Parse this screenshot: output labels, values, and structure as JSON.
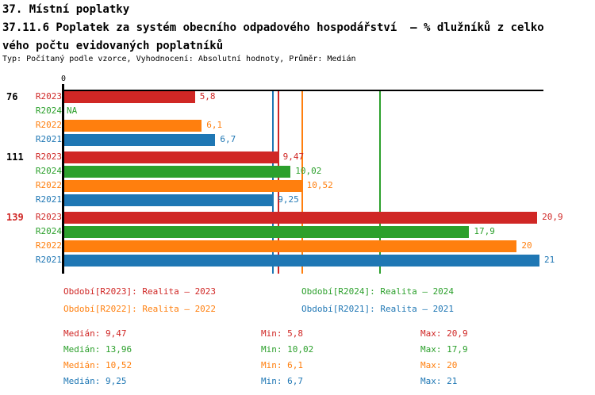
{
  "header": {
    "title": "37. Místní poplatky",
    "subtitle_line1": "37.11.6 Poplatek za systém obecního odpadového hospodářství  – % dlužníků z celko",
    "subtitle_line2": "vého počtu evidovaných poplatníků",
    "meta": "Typ: Počítaný podle vzorce, Vyhodnocení: Absolutní hodnoty, Průměr: Medián"
  },
  "colors": {
    "R2023": "#d02725",
    "R2024": "#2ca02c",
    "R2022": "#ff7f0e",
    "R2021": "#1f77b4",
    "axis": "#000000",
    "highlight_group_label": "#d02725"
  },
  "chart_data": {
    "type": "bar",
    "orientation": "horizontal",
    "title": "37.11.6 Poplatek za systém obecního odpadového hospodářství – % dlužníků z celkového počtu evidovaných poplatníků",
    "x_axis": {
      "tick_labels": [
        "0"
      ],
      "range": [
        0,
        21.2
      ],
      "grid": false
    },
    "series_order": [
      "R2023",
      "R2024",
      "R2022",
      "R2021"
    ],
    "groups": [
      {
        "label": "76",
        "label_color": "#000000",
        "bars": [
          {
            "series": "R2023",
            "value": 5.8,
            "display": "5,8"
          },
          {
            "series": "R2024",
            "value": null,
            "display": "NA"
          },
          {
            "series": "R2022",
            "value": 6.1,
            "display": "6,1"
          },
          {
            "series": "R2021",
            "value": 6.7,
            "display": "6,7"
          }
        ]
      },
      {
        "label": "111",
        "label_color": "#000000",
        "bars": [
          {
            "series": "R2023",
            "value": 9.47,
            "display": "9,47"
          },
          {
            "series": "R2024",
            "value": 10.02,
            "display": "10,02"
          },
          {
            "series": "R2022",
            "value": 10.52,
            "display": "10,52"
          },
          {
            "series": "R2021",
            "value": 9.25,
            "display": "9,25"
          }
        ]
      },
      {
        "label": "139",
        "label_color": "#d02725",
        "bars": [
          {
            "series": "R2023",
            "value": 20.9,
            "display": "20,9"
          },
          {
            "series": "R2024",
            "value": 17.9,
            "display": "17,9"
          },
          {
            "series": "R2022",
            "value": 20,
            "display": "20"
          },
          {
            "series": "R2021",
            "value": 21,
            "display": "21"
          }
        ]
      }
    ],
    "median_lines": [
      {
        "series": "R2021",
        "value": 9.25
      },
      {
        "series": "R2023",
        "value": 9.47
      },
      {
        "series": "R2022",
        "value": 10.52
      },
      {
        "series": "R2024",
        "value": 13.96
      }
    ]
  },
  "legend": [
    {
      "series": "R2023",
      "text": "Období[R2023]: Realita – 2023"
    },
    {
      "series": "R2024",
      "text": "Období[R2024]: Realita – 2024"
    },
    {
      "series": "R2022",
      "text": "Období[R2022]: Realita – 2022"
    },
    {
      "series": "R2021",
      "text": "Období[R2021]: Realita – 2021"
    }
  ],
  "stats": [
    {
      "series": "R2023",
      "median": "Medián: 9,47",
      "min": "Min: 5,8",
      "max": "Max: 20,9"
    },
    {
      "series": "R2024",
      "median": "Medián: 13,96",
      "min": "Min: 10,02",
      "max": "Max: 17,9"
    },
    {
      "series": "R2022",
      "median": "Medián: 10,52",
      "min": "Min: 6,1",
      "max": "Max: 20"
    },
    {
      "series": "R2021",
      "median": "Medián: 9,25",
      "min": "Min: 6,7",
      "max": "Max: 21"
    }
  ]
}
